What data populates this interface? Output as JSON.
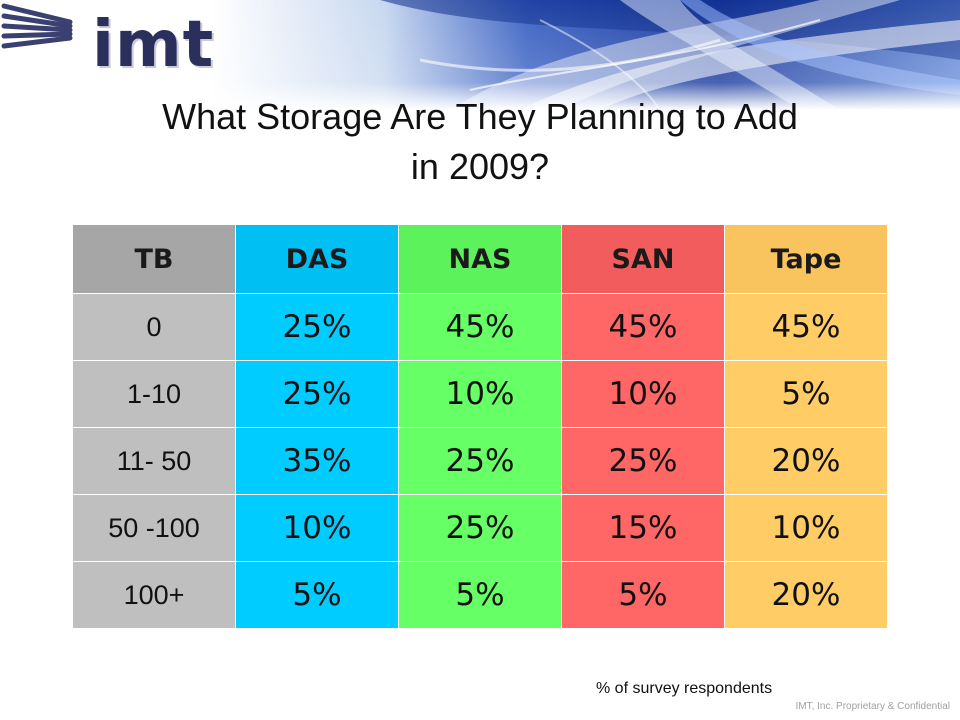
{
  "logo": {
    "text": "imt"
  },
  "title": {
    "line1": "What Storage Are They Planning to Add",
    "line2": "in 2009?"
  },
  "table": {
    "headers": [
      "TB",
      "DAS",
      "NAS",
      "SAN",
      "Tape"
    ],
    "rows": [
      [
        "0",
        "25%",
        "45%",
        "45%",
        "45%"
      ],
      [
        "1-10",
        "25%",
        "10%",
        "10%",
        "5%"
      ],
      [
        "11- 50",
        "35%",
        "25%",
        "25%",
        "20%"
      ],
      [
        "50 -100",
        "10%",
        "25%",
        "15%",
        "10%"
      ],
      [
        "100+",
        "5%",
        "5%",
        "5%",
        "20%"
      ]
    ],
    "colors": {
      "tb": "#bfbfbf",
      "das": "#00ccff",
      "nas": "#66ff66",
      "san": "#ff6666",
      "tape": "#ffcc66"
    }
  },
  "note": "% of survey respondents",
  "footer": "IMT, Inc. Proprietary & Confidential"
}
